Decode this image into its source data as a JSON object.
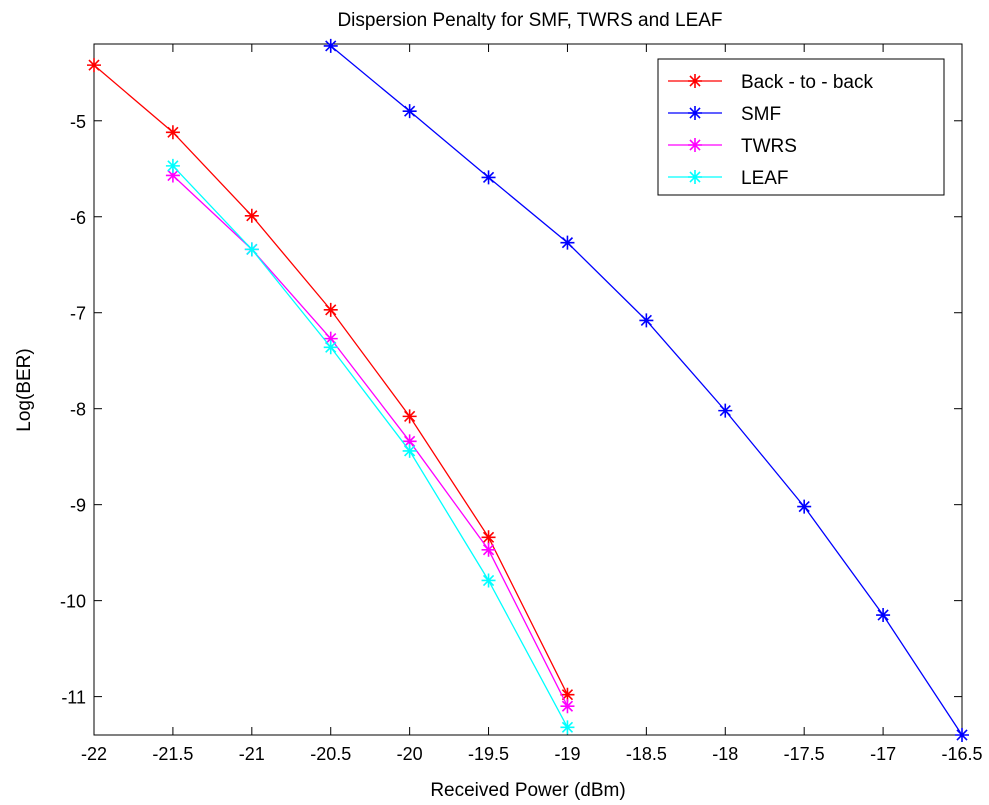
{
  "chart_data": {
    "type": "line",
    "title": "Dispersion Penalty for SMF, TWRS and LEAF",
    "xlabel": "Received Power (dBm)",
    "ylabel": "Log(BER)",
    "xlim": [
      -22,
      -16.5
    ],
    "ylim": [
      -11.4,
      -4.2
    ],
    "xticks": [
      -22,
      -21.5,
      -21,
      -20.5,
      -20,
      -19.5,
      -19,
      -18.5,
      -18,
      -17.5,
      -17,
      -16.5
    ],
    "xtick_labels": [
      "-22",
      "-21.5",
      "-21",
      "-20.5",
      "-20",
      "-19.5",
      "-19",
      "-18.5",
      "-18",
      "-17.5",
      "-17",
      "-16.5"
    ],
    "yticks": [
      -5,
      -6,
      -7,
      -8,
      -9,
      -10,
      -11
    ],
    "ytick_labels": [
      "-5",
      "-6",
      "-7",
      "-8",
      "-9",
      "-10",
      "-11"
    ],
    "grid": false,
    "legend_position": "top-right",
    "marker": "asterisk",
    "series": [
      {
        "name": "Back - to - back",
        "color": "#ff0000",
        "x": [
          -22,
          -21.5,
          -21,
          -20.5,
          -20,
          -19.5,
          -19
        ],
        "y": [
          -4.42,
          -5.12,
          -5.99,
          -6.97,
          -8.08,
          -9.34,
          -10.98
        ]
      },
      {
        "name": "SMF",
        "color": "#0000ff",
        "x": [
          -20.5,
          -20,
          -19.5,
          -19,
          -18.5,
          -18,
          -17.5,
          -17,
          -16.5
        ],
        "y": [
          -4.22,
          -4.9,
          -5.59,
          -6.27,
          -7.08,
          -8.02,
          -9.02,
          -10.15,
          -11.4
        ]
      },
      {
        "name": "TWRS",
        "color": "#ff00ff",
        "x": [
          -21.5,
          -21,
          -20.5,
          -20,
          -19.5,
          -19
        ],
        "y": [
          -5.57,
          -6.34,
          -7.27,
          -8.34,
          -9.47,
          -11.1
        ]
      },
      {
        "name": "LEAF",
        "color": "#00ffff",
        "x": [
          -21.5,
          -21,
          -20.5,
          -20,
          -19.5,
          -19
        ],
        "y": [
          -5.47,
          -6.34,
          -7.36,
          -8.44,
          -9.79,
          -11.32
        ]
      }
    ]
  }
}
